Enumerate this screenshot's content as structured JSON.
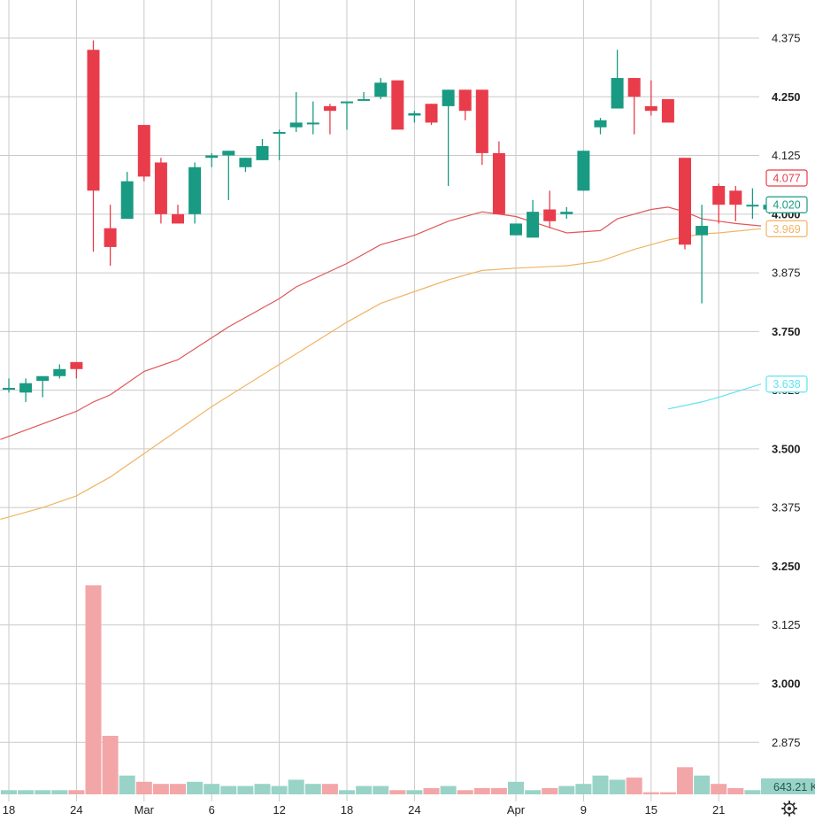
{
  "chart_data": {
    "type": "candlestick",
    "y_axis": {
      "range": [
        2.78,
        4.43
      ],
      "ticks": [
        {
          "value": 4.375,
          "label": "4.375",
          "bold": false
        },
        {
          "value": 4.25,
          "label": "4.250",
          "bold": true
        },
        {
          "value": 4.125,
          "label": "4.125",
          "bold": false
        },
        {
          "value": 4.0,
          "label": "4.000",
          "bold": true
        },
        {
          "value": 3.875,
          "label": "3.875",
          "bold": false
        },
        {
          "value": 3.75,
          "label": "3.750",
          "bold": true
        },
        {
          "value": 3.625,
          "label": "3.625",
          "bold": false
        },
        {
          "value": 3.5,
          "label": "3.500",
          "bold": true
        },
        {
          "value": 3.375,
          "label": "3.375",
          "bold": false
        },
        {
          "value": 3.25,
          "label": "3.250",
          "bold": true
        },
        {
          "value": 3.125,
          "label": "3.125",
          "bold": false
        },
        {
          "value": 3.0,
          "label": "3.000",
          "bold": true
        },
        {
          "value": 2.875,
          "label": "2.875",
          "bold": false
        }
      ]
    },
    "x_axis": {
      "ticks": [
        {
          "index": 0,
          "label": "18"
        },
        {
          "index": 4,
          "label": "24"
        },
        {
          "index": 8,
          "label": "Mar"
        },
        {
          "index": 12,
          "label": "6"
        },
        {
          "index": 16,
          "label": "12"
        },
        {
          "index": 20,
          "label": "18"
        },
        {
          "index": 24,
          "label": "24"
        },
        {
          "index": 30,
          "label": "Apr"
        },
        {
          "index": 34,
          "label": "9"
        },
        {
          "index": 38,
          "label": "15"
        },
        {
          "index": 42,
          "label": "21"
        }
      ]
    },
    "colors": {
      "up": "#199a83",
      "down": "#e93c4b",
      "up_volume": "#99d3c8",
      "down_volume": "#f3a6a8",
      "ma_fast": "#e05757",
      "ma_slow": "#efb463",
      "ma_aux": "#5ee4ef",
      "grid": "#c9c9c9"
    },
    "candles": [
      {
        "o": 3.63,
        "h": 3.65,
        "l": 3.62,
        "c": 3.63
      },
      {
        "o": 3.62,
        "h": 3.65,
        "l": 3.6,
        "c": 3.64
      },
      {
        "o": 3.645,
        "h": 3.655,
        "l": 3.61,
        "c": 3.655
      },
      {
        "o": 3.655,
        "h": 3.68,
        "l": 3.65,
        "c": 3.67
      },
      {
        "o": 3.685,
        "h": 3.685,
        "l": 3.65,
        "c": 3.67
      },
      {
        "o": 4.35,
        "h": 4.37,
        "l": 3.92,
        "c": 4.05
      },
      {
        "o": 3.97,
        "h": 4.02,
        "l": 3.89,
        "c": 3.93
      },
      {
        "o": 3.99,
        "h": 4.09,
        "l": 3.99,
        "c": 4.07
      },
      {
        "o": 4.19,
        "h": 4.19,
        "l": 4.07,
        "c": 4.08
      },
      {
        "o": 4.11,
        "h": 4.12,
        "l": 3.98,
        "c": 4.0
      },
      {
        "o": 4.0,
        "h": 4.02,
        "l": 3.98,
        "c": 3.98
      },
      {
        "o": 4.0,
        "h": 4.11,
        "l": 3.98,
        "c": 4.1
      },
      {
        "o": 4.12,
        "h": 4.13,
        "l": 4.1,
        "c": 4.125
      },
      {
        "o": 4.125,
        "h": 4.135,
        "l": 4.03,
        "c": 4.135
      },
      {
        "o": 4.1,
        "h": 4.12,
        "l": 4.09,
        "c": 4.12
      },
      {
        "o": 4.115,
        "h": 4.16,
        "l": 4.115,
        "c": 4.145
      },
      {
        "o": 4.175,
        "h": 4.18,
        "l": 4.115,
        "c": 4.175
      },
      {
        "o": 4.185,
        "h": 4.26,
        "l": 4.175,
        "c": 4.195
      },
      {
        "o": 4.195,
        "h": 4.24,
        "l": 4.17,
        "c": 4.195
      },
      {
        "o": 4.23,
        "h": 4.235,
        "l": 4.17,
        "c": 4.22
      },
      {
        "o": 4.24,
        "h": 4.24,
        "l": 4.18,
        "c": 4.24
      },
      {
        "o": 4.245,
        "h": 4.26,
        "l": 4.245,
        "c": 4.245
      },
      {
        "o": 4.25,
        "h": 4.29,
        "l": 4.245,
        "c": 4.28
      },
      {
        "o": 4.285,
        "h": 4.285,
        "l": 4.18,
        "c": 4.18
      },
      {
        "o": 4.21,
        "h": 4.22,
        "l": 4.195,
        "c": 4.215
      },
      {
        "o": 4.235,
        "h": 4.235,
        "l": 4.19,
        "c": 4.195
      },
      {
        "o": 4.23,
        "h": 4.265,
        "l": 4.06,
        "c": 4.265
      },
      {
        "o": 4.265,
        "h": 4.265,
        "l": 4.2,
        "c": 4.22
      },
      {
        "o": 4.265,
        "h": 4.265,
        "l": 4.105,
        "c": 4.13
      },
      {
        "o": 4.13,
        "h": 4.155,
        "l": 4.0,
        "c": 4.0
      },
      {
        "o": 3.955,
        "h": 3.98,
        "l": 3.955,
        "c": 3.98
      },
      {
        "o": 3.95,
        "h": 4.03,
        "l": 3.95,
        "c": 4.005
      },
      {
        "o": 4.01,
        "h": 4.05,
        "l": 3.97,
        "c": 3.985
      },
      {
        "o": 4.0,
        "h": 4.015,
        "l": 3.99,
        "c": 4.005
      },
      {
        "o": 4.05,
        "h": 4.135,
        "l": 4.05,
        "c": 4.135
      },
      {
        "o": 4.185,
        "h": 4.205,
        "l": 4.17,
        "c": 4.2
      },
      {
        "o": 4.225,
        "h": 4.35,
        "l": 4.225,
        "c": 4.29
      },
      {
        "o": 4.29,
        "h": 4.29,
        "l": 4.17,
        "c": 4.25
      },
      {
        "o": 4.23,
        "h": 4.285,
        "l": 4.21,
        "c": 4.22
      },
      {
        "o": 4.245,
        "h": 4.245,
        "l": 4.195,
        "c": 4.195
      },
      {
        "o": 4.12,
        "h": 4.12,
        "l": 3.925,
        "c": 3.935
      },
      {
        "o": 3.955,
        "h": 4.02,
        "l": 3.81,
        "c": 3.975
      },
      {
        "o": 4.06,
        "h": 4.065,
        "l": 3.98,
        "c": 4.02
      },
      {
        "o": 4.05,
        "h": 4.06,
        "l": 3.985,
        "c": 4.02
      },
      {
        "o": 4.02,
        "h": 4.055,
        "l": 3.99,
        "c": 4.02
      },
      {
        "o": 4.01,
        "h": 4.025,
        "l": 4.0,
        "c": 4.02
      }
    ],
    "volume": {
      "unit_note": "relative height in the lower pane, 1.0 = tallest bar",
      "values": [
        0.02,
        0.02,
        0.02,
        0.02,
        0.02,
        1.0,
        0.28,
        0.09,
        0.06,
        0.05,
        0.05,
        0.06,
        0.05,
        0.04,
        0.04,
        0.05,
        0.04,
        0.07,
        0.05,
        0.05,
        0.02,
        0.04,
        0.04,
        0.02,
        0.02,
        0.03,
        0.04,
        0.02,
        0.03,
        0.03,
        0.06,
        0.02,
        0.03,
        0.04,
        0.05,
        0.09,
        0.07,
        0.08,
        0.01,
        0.01,
        0.13,
        0.09,
        0.05,
        0.03,
        0.02,
        0.04
      ]
    },
    "ma_fast": {
      "points": [
        [
          -0.5,
          3.52
        ],
        [
          4,
          3.58
        ],
        [
          5,
          3.6
        ],
        [
          6,
          3.615
        ],
        [
          8,
          3.665
        ],
        [
          10,
          3.69
        ],
        [
          13,
          3.76
        ],
        [
          16,
          3.82
        ],
        [
          17,
          3.845
        ],
        [
          20,
          3.895
        ],
        [
          22,
          3.935
        ],
        [
          24,
          3.955
        ],
        [
          26,
          3.985
        ],
        [
          28,
          4.005
        ],
        [
          30,
          3.995
        ],
        [
          33,
          3.96
        ],
        [
          35,
          3.965
        ],
        [
          36,
          3.99
        ],
        [
          37,
          4.0
        ],
        [
          38,
          4.01
        ],
        [
          39,
          4.015
        ],
        [
          40,
          4.005
        ],
        [
          41,
          3.99
        ],
        [
          42,
          3.985
        ],
        [
          43,
          3.98
        ],
        [
          44.5,
          3.975
        ]
      ]
    },
    "ma_slow": {
      "points": [
        [
          -0.5,
          3.35
        ],
        [
          2,
          3.375
        ],
        [
          4,
          3.4
        ],
        [
          6,
          3.44
        ],
        [
          8,
          3.49
        ],
        [
          10,
          3.54
        ],
        [
          12,
          3.59
        ],
        [
          16,
          3.68
        ],
        [
          20,
          3.77
        ],
        [
          22,
          3.81
        ],
        [
          26,
          3.86
        ],
        [
          28,
          3.88
        ],
        [
          30,
          3.885
        ],
        [
          33,
          3.89
        ],
        [
          35,
          3.9
        ],
        [
          37,
          3.925
        ],
        [
          38,
          3.935
        ],
        [
          39,
          3.945
        ],
        [
          41,
          3.958
        ],
        [
          42,
          3.96
        ],
        [
          44.5,
          3.969
        ]
      ]
    },
    "ma_aux": {
      "points": [
        [
          39,
          3.585
        ],
        [
          41,
          3.6
        ],
        [
          42,
          3.61
        ],
        [
          44.5,
          3.638
        ]
      ]
    },
    "price_badges": [
      {
        "label": "4.077",
        "value": 4.077,
        "style": "outline",
        "color": "#e93c4b"
      },
      {
        "label": "4.020",
        "value": 4.02,
        "style": "outline",
        "color": "#199a83"
      },
      {
        "label": "3.969",
        "value": 3.969,
        "style": "outline",
        "color": "#efb463"
      },
      {
        "label": "3.638",
        "value": 3.638,
        "style": "outline",
        "color": "#5ee4ef"
      }
    ],
    "volume_badge": {
      "label": "643.21 K",
      "color": "#99d3c8"
    },
    "settings_icon": "gear-icon"
  }
}
